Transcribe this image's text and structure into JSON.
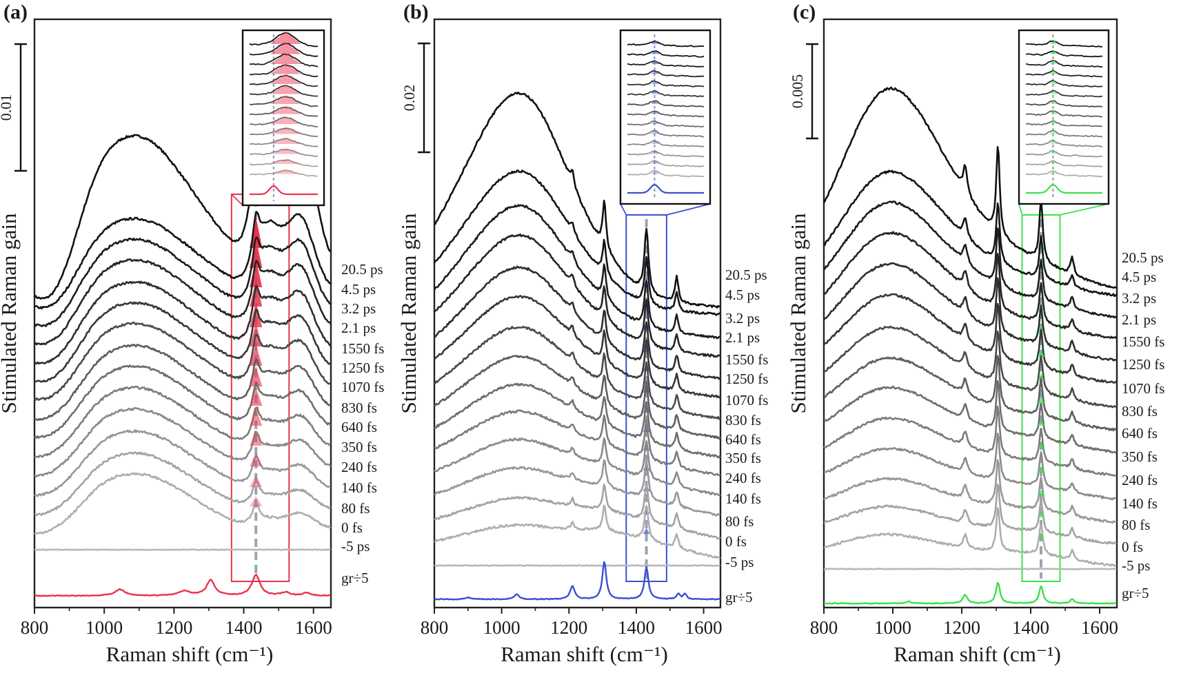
{
  "figure": {
    "panels": [
      "(a)",
      "(b)",
      "(c)"
    ],
    "xlabel": "Raman shift (cm⁻¹)",
    "ylabel": "Stimulated Raman gain",
    "delay_labels": [
      "20.5 ps",
      "4.5 ps",
      "3.2 ps",
      "2.1 ps",
      "1550 fs",
      "1250 fs",
      "1070 fs",
      "830 fs",
      "640 fs",
      "350 fs",
      "240 fs",
      "140 fs",
      "80 fs",
      "0 fs",
      "-5 ps",
      "gr÷5"
    ]
  },
  "chart_data": [
    {
      "type": "line",
      "panel": "(a)",
      "xlabel": "Raman shift (cm⁻¹)",
      "ylabel": "Stimulated Raman gain",
      "xlim": [
        800,
        1650
      ],
      "xticks": [
        800,
        1000,
        1200,
        1400,
        1600
      ],
      "scale_bar_label": "0.01",
      "highlight_band": [
        1365,
        1530
      ],
      "marker_x": 1435,
      "accent_color": "#e8344e",
      "series": [
        {
          "name": "20.5 ps",
          "color": "#111111"
        },
        {
          "name": "4.5 ps",
          "color": "#151515"
        },
        {
          "name": "3.2 ps",
          "color": "#1d1d1d"
        },
        {
          "name": "2.1 ps",
          "color": "#252525"
        },
        {
          "name": "1550 fs",
          "color": "#2e2e2e"
        },
        {
          "name": "1250 fs",
          "color": "#373737"
        },
        {
          "name": "1070 fs",
          "color": "#4a4a4a"
        },
        {
          "name": "830 fs",
          "color": "#5e5e5e"
        },
        {
          "name": "640 fs",
          "color": "#6e6e6e"
        },
        {
          "name": "350 fs",
          "color": "#7c7c7c"
        },
        {
          "name": "240 fs",
          "color": "#8a8a8a"
        },
        {
          "name": "140 fs",
          "color": "#979797"
        },
        {
          "name": "80 fs",
          "color": "#a3a3a3"
        },
        {
          "name": "0 fs",
          "color": "#aeaeae"
        },
        {
          "name": "-5 ps",
          "color": "#b8b8b8"
        },
        {
          "name": "gr÷5",
          "color": "#e8344e"
        }
      ]
    },
    {
      "type": "line",
      "panel": "(b)",
      "xlabel": "Raman shift (cm⁻¹)",
      "ylabel": "Stimulated Raman gain",
      "xlim": [
        800,
        1650
      ],
      "xticks": [
        800,
        1000,
        1200,
        1400,
        1600
      ],
      "scale_bar_label": "0.02",
      "highlight_band": [
        1370,
        1490
      ],
      "marker_x": 1430,
      "accent_color": "#3a4fd0",
      "series": [
        {
          "name": "20.5 ps",
          "color": "#111111"
        },
        {
          "name": "4.5 ps",
          "color": "#151515"
        },
        {
          "name": "3.2 ps",
          "color": "#1d1d1d"
        },
        {
          "name": "2.1 ps",
          "color": "#252525"
        },
        {
          "name": "1550 fs",
          "color": "#2e2e2e"
        },
        {
          "name": "1250 fs",
          "color": "#373737"
        },
        {
          "name": "1070 fs",
          "color": "#4a4a4a"
        },
        {
          "name": "830 fs",
          "color": "#5e5e5e"
        },
        {
          "name": "640 fs",
          "color": "#6e6e6e"
        },
        {
          "name": "350 fs",
          "color": "#7c7c7c"
        },
        {
          "name": "240 fs",
          "color": "#8a8a8a"
        },
        {
          "name": "140 fs",
          "color": "#979797"
        },
        {
          "name": "80 fs",
          "color": "#a3a3a3"
        },
        {
          "name": "0 fs",
          "color": "#aeaeae"
        },
        {
          "name": "-5 ps",
          "color": "#b8b8b8"
        },
        {
          "name": "gr÷5",
          "color": "#3a4fd0"
        }
      ]
    },
    {
      "type": "line",
      "panel": "(c)",
      "xlabel": "Raman shift (cm⁻¹)",
      "ylabel": "Stimulated Raman gain",
      "xlim": [
        800,
        1650
      ],
      "xticks": [
        800,
        1000,
        1200,
        1400,
        1600
      ],
      "scale_bar_label": "0.005",
      "highlight_band": [
        1375,
        1485
      ],
      "marker_x": 1430,
      "accent_color": "#3ee04a",
      "series": [
        {
          "name": "20.5 ps",
          "color": "#111111"
        },
        {
          "name": "4.5 ps",
          "color": "#151515"
        },
        {
          "name": "3.2 ps",
          "color": "#1d1d1d"
        },
        {
          "name": "2.1 ps",
          "color": "#252525"
        },
        {
          "name": "1550 fs",
          "color": "#2e2e2e"
        },
        {
          "name": "1250 fs",
          "color": "#373737"
        },
        {
          "name": "1070 fs",
          "color": "#4a4a4a"
        },
        {
          "name": "830 fs",
          "color": "#5e5e5e"
        },
        {
          "name": "640 fs",
          "color": "#6e6e6e"
        },
        {
          "name": "350 fs",
          "color": "#7c7c7c"
        },
        {
          "name": "240 fs",
          "color": "#8a8a8a"
        },
        {
          "name": "140 fs",
          "color": "#979797"
        },
        {
          "name": "80 fs",
          "color": "#a3a3a3"
        },
        {
          "name": "0 fs",
          "color": "#aeaeae"
        },
        {
          "name": "-5 ps",
          "color": "#b8b8b8"
        },
        {
          "name": "gr÷5",
          "color": "#3ee04a"
        }
      ]
    }
  ]
}
